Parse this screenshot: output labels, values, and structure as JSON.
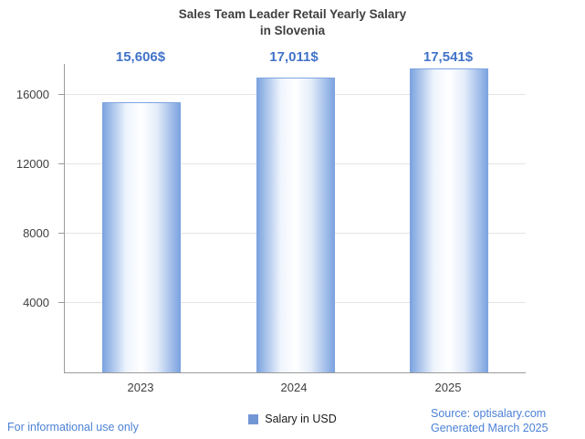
{
  "title": {
    "line1": "Sales Team Leader Retail Yearly Salary",
    "line2": "in Slovenia"
  },
  "chart_data": {
    "type": "bar",
    "categories": [
      "2023",
      "2024",
      "2025"
    ],
    "values": [
      15606,
      17011,
      17541
    ],
    "value_labels": [
      "15,606$",
      "17,011$",
      "17,541$"
    ],
    "title": "Sales Team Leader Retail Yearly Salary in Slovenia",
    "xlabel": "",
    "ylabel": "",
    "ylim": [
      0,
      17800
    ],
    "yticks": [
      4000,
      8000,
      12000,
      16000
    ],
    "grid": true,
    "legend_position": "bottom",
    "series_name": "Salary in USD"
  },
  "legend": {
    "label": "Salary in USD"
  },
  "footer": {
    "left": "For informational use only",
    "source_line1": "Source: optisalary.com",
    "source_line2": "Generated March 2025"
  },
  "colors": {
    "accent_value_label": "#4173c9",
    "footer_link": "#4d82d6",
    "bar_edge": "#7da4e0",
    "bar_center": "#ffffff",
    "legend_swatch": "#7396d5",
    "axis": "#9b9b9b",
    "gridline": "#e4e4e4",
    "title_text": "#404040"
  }
}
